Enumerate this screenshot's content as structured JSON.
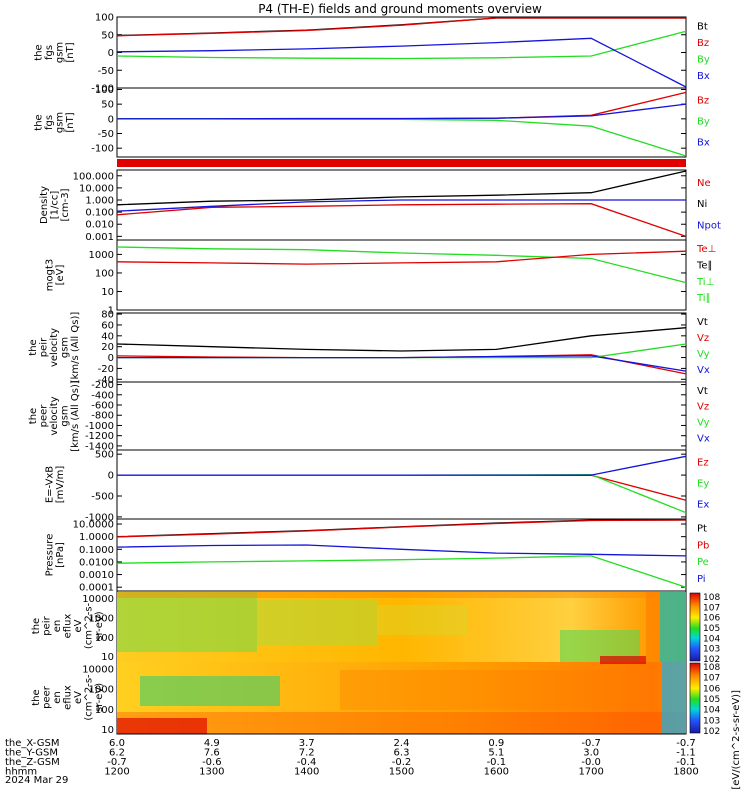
{
  "title": "P4 (TH-E) fields and ground moments overview",
  "colors": {
    "black": "#000000",
    "red": "#e00000",
    "green": "#22dd22",
    "blue": "#1414dc",
    "orange": "#ff8800"
  },
  "panels": [
    {
      "id": "fgs-gsm",
      "ylabel": [
        "the",
        "fgs",
        "gsm",
        "[nT]"
      ],
      "scale": "linear",
      "yticks": [
        "100",
        "50",
        "0",
        "-50",
        "-100"
      ],
      "ytick_values": [
        100,
        50,
        0,
        -50,
        -100
      ],
      "ylim": [
        -100,
        100
      ],
      "legend": [
        {
          "text": "Bt",
          "color": "black"
        },
        {
          "text": "Bz",
          "color": "red"
        },
        {
          "text": "By",
          "color": "green"
        },
        {
          "text": "Bx",
          "color": "blue"
        }
      ]
    },
    {
      "id": "fgs-gsm-2",
      "ylabel": [
        "the",
        "fgs",
        "gsm",
        "[nT]"
      ],
      "scale": "linear",
      "yticks": [
        "100",
        "50",
        "0",
        "-50",
        "-100"
      ],
      "ytick_values": [
        100,
        50,
        0,
        -50,
        -100
      ],
      "ylim": [
        -130,
        105
      ],
      "legend": [
        {
          "text": "Bz",
          "color": "red"
        },
        {
          "text": "By",
          "color": "green"
        },
        {
          "text": "Bx",
          "color": "blue"
        }
      ]
    },
    {
      "id": "density",
      "ylabel": [
        "Density",
        "[1/cc]",
        "[cm-3]"
      ],
      "scale": "log",
      "yticks": [
        "100.000",
        "10.000",
        "1.000",
        "0.100",
        "0.010",
        "0.001"
      ],
      "ytick_values": [
        100,
        10,
        1,
        0.1,
        0.01,
        0.001
      ],
      "ylim": [
        0.0005,
        300
      ],
      "legend": [
        {
          "text": "Ne",
          "color": "red"
        },
        {
          "text": "Ni",
          "color": "black"
        },
        {
          "text": "Npot",
          "color": "blue"
        }
      ]
    },
    {
      "id": "temperature",
      "ylabel": [
        "mogt3",
        "[eV]"
      ],
      "scale": "log",
      "yticks": [
        "1000",
        "100",
        "10",
        "1"
      ],
      "ytick_values": [
        1000,
        100,
        10,
        1
      ],
      "ylim": [
        1,
        6000
      ],
      "legend": [
        {
          "text": "Te⊥",
          "color": "red"
        },
        {
          "text": "Te∥",
          "color": "black"
        },
        {
          "text": "Ti⊥",
          "color": "green"
        },
        {
          "text": "Ti∥",
          "color": "green"
        }
      ]
    },
    {
      "id": "peir-velocity",
      "ylabel": [
        "the",
        "peir",
        "velocity",
        "gsm",
        "[km/s (All Qs)]"
      ],
      "scale": "linear",
      "yticks": [
        "80",
        "60",
        "40",
        "20",
        "0",
        "-20",
        "-40"
      ],
      "ytick_values": [
        80,
        60,
        40,
        20,
        0,
        -20,
        -40
      ],
      "ylim": [
        -45,
        82
      ],
      "legend": [
        {
          "text": "Vt",
          "color": "black"
        },
        {
          "text": "Vz",
          "color": "red"
        },
        {
          "text": "Vy",
          "color": "green"
        },
        {
          "text": "Vx",
          "color": "blue"
        }
      ]
    },
    {
      "id": "peer-velocity",
      "ylabel": [
        "the",
        "peer",
        "velocity",
        "gsm",
        "[km/s (All Qs)]"
      ],
      "scale": "linear",
      "yticks": [
        "-200",
        "-400",
        "-600",
        "-800",
        "-1000",
        "-1200",
        "-1400"
      ],
      "ytick_values": [
        -200,
        -400,
        -600,
        -800,
        -1000,
        -1200,
        -1400
      ],
      "ylim": [
        -1480,
        -150
      ],
      "legend": [
        {
          "text": "Vt",
          "color": "black"
        },
        {
          "text": "Vz",
          "color": "red"
        },
        {
          "text": "Vy",
          "color": "green"
        },
        {
          "text": "Vx",
          "color": "blue"
        }
      ]
    },
    {
      "id": "efield",
      "ylabel": [
        "E=-VxB",
        "[mV/m]"
      ],
      "scale": "linear",
      "yticks": [
        "500",
        "0",
        "-500",
        "-1000"
      ],
      "ytick_values": [
        500,
        0,
        -500,
        -1000
      ],
      "ylim": [
        -1050,
        600
      ],
      "legend": [
        {
          "text": "Ez",
          "color": "red"
        },
        {
          "text": "Ey",
          "color": "green"
        },
        {
          "text": "Ex",
          "color": "blue"
        }
      ]
    },
    {
      "id": "pressure",
      "ylabel": [
        "Pressure",
        "[nPa]"
      ],
      "scale": "log",
      "yticks": [
        "10.0000",
        "1.0000",
        "0.1000",
        "0.0100",
        "0.0010",
        "0.0001"
      ],
      "ytick_values": [
        10,
        1,
        0.1,
        0.01,
        0.001,
        0.0001
      ],
      "ylim": [
        5e-05,
        25
      ],
      "legend": [
        {
          "text": "Pt",
          "color": "black"
        },
        {
          "text": "Pb",
          "color": "red"
        },
        {
          "text": "Pe",
          "color": "green"
        },
        {
          "text": "Pi",
          "color": "blue"
        }
      ]
    },
    {
      "id": "peir-eflux",
      "ylabel": [
        "the",
        "peir",
        "en",
        "eflux",
        "eV",
        "(cm^2-s-",
        "sr-eV)"
      ],
      "scale": "log",
      "yticks": [
        "10000",
        "1000",
        "100",
        "10"
      ],
      "ytick_values": [
        10000,
        1000,
        100,
        10
      ],
      "ylim": [
        6,
        25000
      ],
      "legend": []
    },
    {
      "id": "peer-eflux",
      "ylabel": [
        "the",
        "peer",
        "en",
        "eflux",
        "eV",
        "(cm^2-s-",
        "sr-eV)"
      ],
      "scale": "log",
      "yticks": [
        "10000",
        "1000",
        "100",
        "10"
      ],
      "ytick_values": [
        10000,
        1000,
        100,
        10
      ],
      "ylim": [
        6,
        25000
      ],
      "legend": []
    }
  ],
  "colorbar": {
    "labels": [
      "10^8",
      "10^7",
      "10^6",
      "10^5",
      "10^4",
      "10^3",
      "10^2"
    ],
    "unit": "[eV/(cm^2-s-sr-eV)]"
  },
  "xaxis": {
    "rows": [
      {
        "label": "the_X-GSM",
        "values": [
          "6.0",
          "4.9",
          "3.7",
          "2.4",
          "0.9",
          "-0.7",
          "-0.7"
        ]
      },
      {
        "label": "the_Y-GSM",
        "values": [
          "6.2",
          "7.6",
          "7.2",
          "6.3",
          "5.1",
          "3.0",
          "-1.1"
        ]
      },
      {
        "label": "the_Z-GSM",
        "values": [
          "-0.7",
          "-0.6",
          "-0.4",
          "-0.2",
          "-0.1",
          "-0.0",
          "-0.1"
        ]
      },
      {
        "label": "hhmm",
        "values": [
          "1200",
          "1300",
          "1400",
          "1500",
          "1600",
          "1700",
          "1800"
        ]
      }
    ],
    "date": "2024 Mar 29"
  },
  "chart_data": {
    "type": "line",
    "title": "P4 (TH-E) fields and ground moments overview",
    "x": [
      "1200",
      "1300",
      "1400",
      "1500",
      "1600",
      "1700",
      "1800"
    ],
    "xlabel": "hhmm",
    "date": "2024 Mar 29",
    "series": [
      {
        "name": "Bt",
        "panel": 0,
        "values": [
          48,
          55,
          63,
          78,
          100,
          115,
          120
        ]
      },
      {
        "name": "Bz",
        "panel": 0,
        "values": [
          47,
          54,
          62,
          77,
          99,
          114,
          118
        ]
      },
      {
        "name": "By",
        "panel": 0,
        "values": [
          -10,
          -14,
          -16,
          -17,
          -15,
          -10,
          60
        ]
      },
      {
        "name": "Bx",
        "panel": 0,
        "values": [
          2,
          5,
          10,
          18,
          28,
          40,
          -120
        ]
      },
      {
        "name": "Bz",
        "panel": 1,
        "values": [
          0,
          0,
          0,
          0,
          2,
          12,
          90
        ]
      },
      {
        "name": "By",
        "panel": 1,
        "values": [
          0,
          0,
          -2,
          -2,
          -5,
          -25,
          -130
        ]
      },
      {
        "name": "Bx",
        "panel": 1,
        "values": [
          0,
          0,
          1,
          1,
          2,
          10,
          50
        ]
      },
      {
        "name": "Ni",
        "panel": 2,
        "values": [
          0.4,
          0.8,
          1.0,
          1.8,
          2.5,
          4.0,
          250
        ]
      },
      {
        "name": "Ne",
        "panel": 2,
        "values": [
          0.06,
          0.25,
          0.3,
          0.4,
          0.45,
          0.5,
          0.001
        ]
      },
      {
        "name": "Npot",
        "panel": 2,
        "values": [
          0.12,
          0.3,
          0.7,
          1.0,
          1.0,
          1.0,
          1.0
        ]
      },
      {
        "name": "Ti",
        "panel": 3,
        "values": [
          2500,
          2000,
          1800,
          1200,
          900,
          600,
          30
        ]
      },
      {
        "name": "Te",
        "panel": 3,
        "values": [
          400,
          350,
          300,
          350,
          400,
          1000,
          1500
        ]
      },
      {
        "name": "Vt",
        "panel": 4,
        "values": [
          25,
          20,
          15,
          12,
          15,
          40,
          55
        ]
      },
      {
        "name": "Vz",
        "panel": 4,
        "values": [
          3,
          1,
          0,
          0,
          2,
          5,
          -30
        ]
      },
      {
        "name": "Vy",
        "panel": 4,
        "values": [
          0,
          0,
          0,
          0,
          0,
          0,
          25
        ]
      },
      {
        "name": "Vx",
        "panel": 4,
        "values": [
          0,
          0,
          0,
          0,
          2,
          3,
          -25
        ]
      },
      {
        "name": "Ez",
        "panel": 6,
        "values": [
          0,
          0,
          0,
          0,
          0,
          -5,
          -600
        ]
      },
      {
        "name": "Ey",
        "panel": 6,
        "values": [
          0,
          0,
          0,
          0,
          5,
          10,
          -900
        ]
      },
      {
        "name": "Ex",
        "panel": 6,
        "values": [
          0,
          0,
          0,
          0,
          0,
          0,
          450
        ]
      },
      {
        "name": "Pt",
        "panel": 7,
        "values": [
          1.0,
          1.7,
          3.0,
          6.0,
          12.0,
          20.0,
          25.0
        ]
      },
      {
        "name": "Pb",
        "panel": 7,
        "values": [
          0.95,
          1.6,
          2.8,
          5.8,
          11.0,
          19.0,
          24.0
        ]
      },
      {
        "name": "Pe",
        "panel": 7,
        "values": [
          0.008,
          0.01,
          0.012,
          0.015,
          0.02,
          0.03,
          0.0001
        ]
      },
      {
        "name": "Pi",
        "panel": 7,
        "values": [
          0.15,
          0.2,
          0.22,
          0.1,
          0.05,
          0.04,
          0.03
        ]
      }
    ]
  }
}
